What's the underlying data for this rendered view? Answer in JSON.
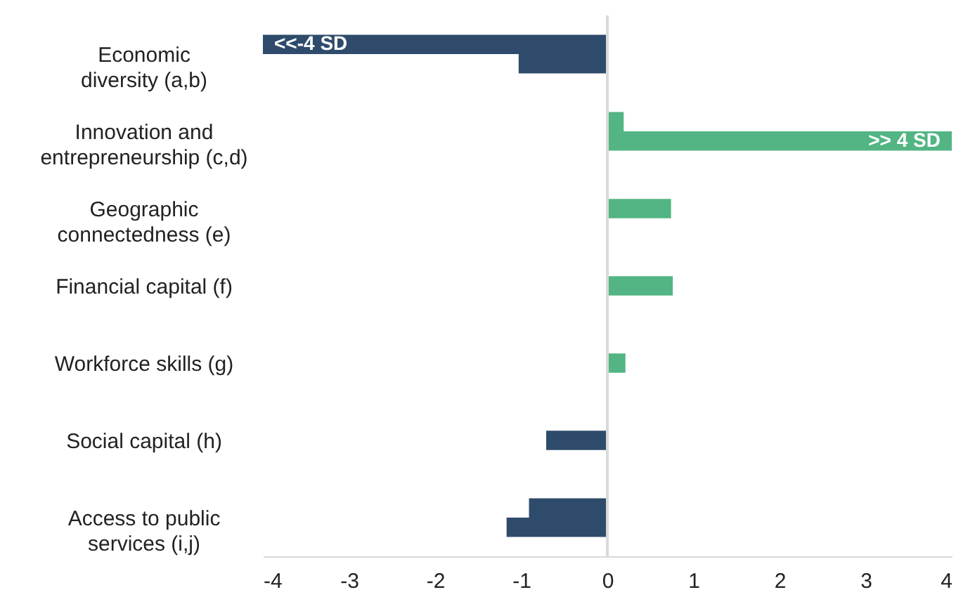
{
  "chart_data": {
    "type": "bar",
    "orientation": "horizontal",
    "categories": [
      "Economic diversity (a,b)",
      "Innovation and entrepreneurship (c,d)",
      "Geographic connectedness (e)",
      "Financial capital (f)",
      "Workforce skills (g)",
      "Social capital (h)",
      "Access to public services (i,j)"
    ],
    "series": [
      {
        "colors": [
          "#2f4b6b",
          "#52b583",
          "#52b583",
          "#52b583",
          "#52b583",
          "#2f4b6b",
          "#2f4b6b"
        ],
        "values": [
          -4,
          0.19,
          0.74,
          0.76,
          0.21,
          -0.71,
          -0.91
        ],
        "value_labels": [
          "<<-4 SD",
          null,
          null,
          null,
          null,
          null,
          null
        ]
      },
      {
        "colors": [
          "#2f4b6b",
          "#52b583",
          null,
          null,
          null,
          null,
          "#2f4b6b"
        ],
        "values": [
          -1.03,
          4,
          null,
          null,
          null,
          null,
          -1.17
        ],
        "value_labels": [
          null,
          ">> 4 SD",
          null,
          null,
          null,
          null,
          null
        ]
      }
    ],
    "xlim": [
      -4,
      4
    ],
    "xticks": [
      -4,
      -3,
      -2,
      -1,
      0,
      1,
      2,
      3,
      4
    ],
    "ref_lines": [
      {
        "axis": "x",
        "value": 0,
        "color": "#d9d9d9"
      }
    ]
  }
}
